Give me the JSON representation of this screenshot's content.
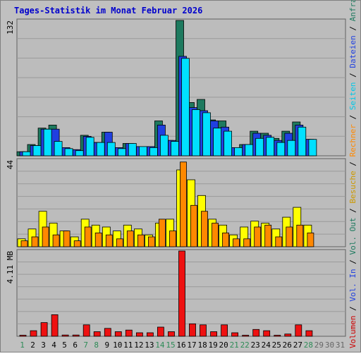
{
  "title": "Tages-Statistik im Monat Februar 2026",
  "colors": {
    "frame_bg": "#c0c0c0",
    "plot_bg": "#bcbcbc",
    "title": "#0000cc",
    "grid": "#9a9a9a",
    "weekday_label": "#000000",
    "weekend_label": "#2e8b57",
    "inactive_label": "#666666"
  },
  "chart_data": [
    {
      "type": "bar",
      "panel": "top",
      "y_axis_label": "132",
      "ylim": [
        0,
        132
      ],
      "categories": [
        "1",
        "2",
        "3",
        "4",
        "5",
        "6",
        "7",
        "8",
        "9",
        "10",
        "11",
        "12",
        "13",
        "14",
        "15",
        "16",
        "17",
        "18",
        "19",
        "20",
        "21",
        "22",
        "23",
        "24",
        "25",
        "26",
        "27",
        "28",
        "29",
        "30",
        "31"
      ],
      "series": [
        {
          "name": "Anfragen",
          "color": "#1e7a5f",
          "values": [
            4,
            11,
            27,
            30,
            8,
            6,
            20,
            13,
            23,
            8,
            12,
            9,
            9,
            34,
            15,
            132,
            52,
            55,
            35,
            34,
            8,
            11,
            24,
            22,
            17,
            24,
            33,
            16,
            0,
            0,
            0
          ]
        },
        {
          "name": "Dateien",
          "color": "#2040e0",
          "values": [
            4,
            10,
            26,
            26,
            8,
            6,
            19,
            13,
            23,
            8,
            12,
            9,
            9,
            30,
            15,
            97,
            47,
            44,
            34,
            28,
            8,
            11,
            22,
            20,
            15,
            22,
            30,
            16,
            0,
            0,
            0
          ]
        },
        {
          "name": "Seiten",
          "color": "#00e0ff",
          "values": [
            4,
            10,
            26,
            14,
            7,
            5,
            18,
            13,
            13,
            7,
            12,
            9,
            8,
            20,
            14,
            95,
            45,
            42,
            27,
            24,
            8,
            11,
            17,
            18,
            13,
            15,
            28,
            16,
            0,
            0,
            0
          ]
        }
      ]
    },
    {
      "type": "bar",
      "panel": "middle",
      "y_axis_label": "44",
      "ylim": [
        0,
        44
      ],
      "categories": [
        "1",
        "2",
        "3",
        "4",
        "5",
        "6",
        "7",
        "8",
        "9",
        "10",
        "11",
        "12",
        "13",
        "14",
        "15",
        "16",
        "17",
        "18",
        "19",
        "20",
        "21",
        "22",
        "23",
        "24",
        "25",
        "26",
        "27",
        "28",
        "29",
        "30",
        "31"
      ],
      "series": [
        {
          "name": "Besuche",
          "color": "#ffff00",
          "values": [
            4,
            9,
            18,
            12,
            8,
            5,
            14,
            11,
            10,
            8,
            11,
            9,
            6,
            12,
            14,
            39,
            34,
            26,
            14,
            11,
            6,
            10,
            13,
            12,
            9,
            15,
            20,
            11,
            0,
            0,
            0
          ]
        },
        {
          "name": "Rechner",
          "color": "#ff8800",
          "values": [
            3,
            5,
            10,
            6,
            8,
            3,
            10,
            7,
            6,
            4,
            8,
            6,
            5,
            14,
            8,
            43,
            21,
            18,
            12,
            7,
            4,
            4,
            10,
            11,
            5,
            10,
            11,
            7,
            0,
            0,
            0
          ]
        }
      ]
    },
    {
      "type": "bar",
      "panel": "bottom",
      "y_axis_label": "4.11 MB",
      "ylim": [
        0,
        4.11
      ],
      "categories": [
        "1",
        "2",
        "3",
        "4",
        "5",
        "6",
        "7",
        "8",
        "9",
        "10",
        "11",
        "12",
        "13",
        "14",
        "15",
        "16",
        "17",
        "18",
        "19",
        "20",
        "21",
        "22",
        "23",
        "24",
        "25",
        "26",
        "27",
        "28",
        "29",
        "30",
        "31"
      ],
      "series": [
        {
          "name": "Volumen",
          "color": "#ee1111",
          "values": [
            0.05,
            0.27,
            0.66,
            1.04,
            0.06,
            0.06,
            0.55,
            0.22,
            0.38,
            0.22,
            0.3,
            0.17,
            0.17,
            0.44,
            0.22,
            4.11,
            0.6,
            0.55,
            0.22,
            0.55,
            0.17,
            0.05,
            0.33,
            0.27,
            0.05,
            0.11,
            0.55,
            0.27,
            0,
            0,
            0
          ]
        }
      ]
    }
  ],
  "legend_right": [
    {
      "label": "Volumen",
      "color": "#cc0000"
    },
    {
      "label": "Vol. In",
      "color": "#2040e0"
    },
    {
      "label": "Vol. Out",
      "color": "#1e7a5f"
    },
    {
      "label": "Besuche",
      "color": "#cc9900"
    },
    {
      "label": "Rechner",
      "color": "#ff8800"
    },
    {
      "label": "Seiten",
      "color": "#00c8e8"
    },
    {
      "label": "Dateien",
      "color": "#2040e0"
    },
    {
      "label": "Anfragen",
      "color": "#1e7a5f"
    }
  ],
  "x_labels": [
    {
      "text": "1",
      "kind": "weekend"
    },
    {
      "text": "2",
      "kind": "weekday"
    },
    {
      "text": "3",
      "kind": "weekday"
    },
    {
      "text": "4",
      "kind": "weekday"
    },
    {
      "text": "5",
      "kind": "weekday"
    },
    {
      "text": "6",
      "kind": "weekday"
    },
    {
      "text": "7",
      "kind": "weekend"
    },
    {
      "text": "8",
      "kind": "weekend"
    },
    {
      "text": "9",
      "kind": "weekday"
    },
    {
      "text": "10",
      "kind": "weekday"
    },
    {
      "text": "11",
      "kind": "weekday"
    },
    {
      "text": "12",
      "kind": "weekday"
    },
    {
      "text": "13",
      "kind": "weekday"
    },
    {
      "text": "14",
      "kind": "weekend"
    },
    {
      "text": "15",
      "kind": "weekend"
    },
    {
      "text": "16",
      "kind": "weekday"
    },
    {
      "text": "17",
      "kind": "weekday"
    },
    {
      "text": "18",
      "kind": "weekday"
    },
    {
      "text": "19",
      "kind": "weekday"
    },
    {
      "text": "20",
      "kind": "weekday"
    },
    {
      "text": "21",
      "kind": "weekend"
    },
    {
      "text": "22",
      "kind": "weekend"
    },
    {
      "text": "23",
      "kind": "weekday"
    },
    {
      "text": "24",
      "kind": "weekday"
    },
    {
      "text": "25",
      "kind": "weekday"
    },
    {
      "text": "26",
      "kind": "weekday"
    },
    {
      "text": "27",
      "kind": "weekday"
    },
    {
      "text": "28",
      "kind": "weekend"
    },
    {
      "text": "29",
      "kind": "inactive"
    },
    {
      "text": "30",
      "kind": "inactive"
    },
    {
      "text": "31",
      "kind": "inactive"
    }
  ]
}
